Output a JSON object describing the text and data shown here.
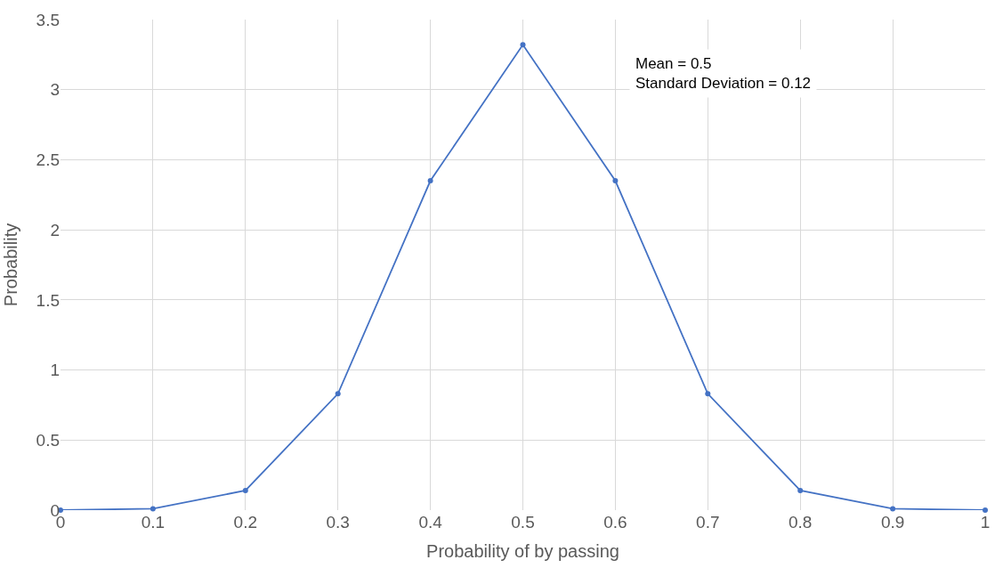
{
  "chart_data": {
    "type": "line",
    "xlabel": "Probability of by passing",
    "ylabel": "Probability",
    "x": [
      0,
      0.1,
      0.2,
      0.3,
      0.4,
      0.5,
      0.6,
      0.7,
      0.8,
      0.9,
      1
    ],
    "series": [
      {
        "color": "#4472c4",
        "values": [
          0,
          0.01,
          0.14,
          0.83,
          2.35,
          3.32,
          2.35,
          0.83,
          0.14,
          0.01,
          0
        ]
      }
    ],
    "xlim": [
      0,
      1
    ],
    "xticks": [
      0,
      0.1,
      0.2,
      0.3,
      0.4,
      0.5,
      0.6,
      0.7,
      0.8,
      0.9,
      1
    ],
    "ylim": [
      0,
      3.5
    ],
    "yticks": [
      0,
      0.5,
      1,
      1.5,
      2,
      2.5,
      3,
      3.5
    ],
    "annotations": [
      "Mean = 0.5\nStandard Deviation = 0.12"
    ],
    "grid": true,
    "marker": "circle",
    "line_style": "solid"
  }
}
